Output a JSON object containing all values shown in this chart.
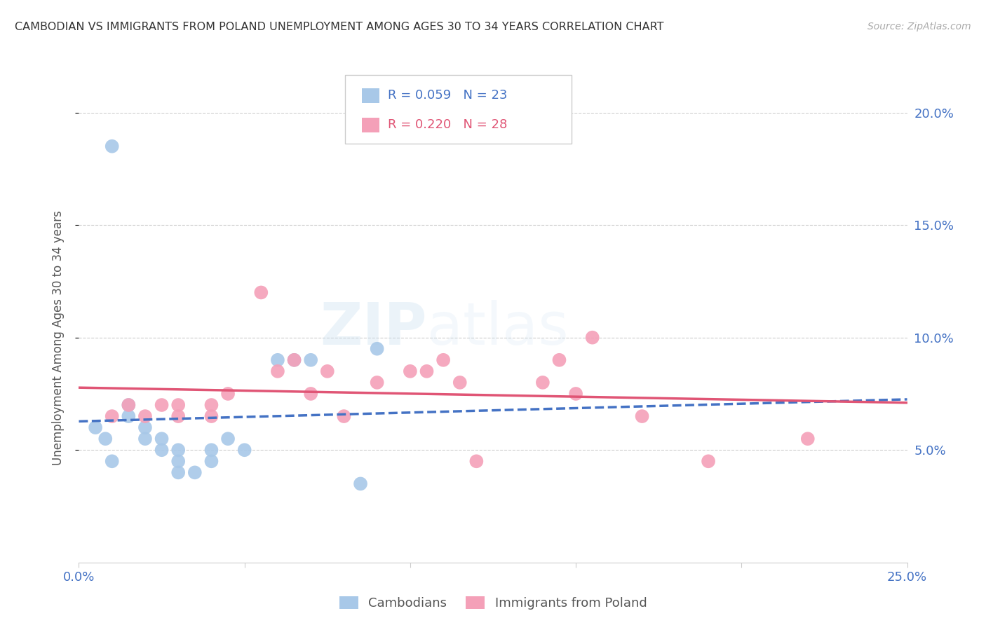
{
  "title": "CAMBODIAN VS IMMIGRANTS FROM POLAND UNEMPLOYMENT AMONG AGES 30 TO 34 YEARS CORRELATION CHART",
  "source": "Source: ZipAtlas.com",
  "ylabel": "Unemployment Among Ages 30 to 34 years",
  "xlabel": "",
  "xlim": [
    0.0,
    0.25
  ],
  "ylim": [
    0.0,
    0.2
  ],
  "xticks": [
    0.0,
    0.05,
    0.1,
    0.15,
    0.2,
    0.25
  ],
  "xtick_labels": [
    "0.0%",
    "",
    "",
    "",
    "",
    "25.0%"
  ],
  "yticks": [
    0.05,
    0.1,
    0.15,
    0.2
  ],
  "ytick_labels_right": [
    "5.0%",
    "10.0%",
    "15.0%",
    "20.0%"
  ],
  "cambodian_color": "#a8c8e8",
  "poland_color": "#f4a0b8",
  "cambodian_line_color": "#4472c4",
  "poland_line_color": "#e05575",
  "legend_R_cambodian": "R = 0.059",
  "legend_N_cambodian": "N = 23",
  "legend_R_poland": "R = 0.220",
  "legend_N_poland": "N = 28",
  "legend_label_cambodian": "Cambodians",
  "legend_label_poland": "Immigrants from Poland",
  "watermark_part1": "ZIP",
  "watermark_part2": "atlas",
  "cambodian_x": [
    0.005,
    0.008,
    0.01,
    0.015,
    0.015,
    0.02,
    0.02,
    0.025,
    0.025,
    0.03,
    0.03,
    0.03,
    0.035,
    0.04,
    0.04,
    0.045,
    0.05,
    0.06,
    0.065,
    0.07,
    0.085,
    0.09,
    0.01
  ],
  "cambodian_y": [
    0.06,
    0.055,
    0.045,
    0.07,
    0.065,
    0.055,
    0.06,
    0.05,
    0.055,
    0.04,
    0.045,
    0.05,
    0.04,
    0.045,
    0.05,
    0.055,
    0.05,
    0.09,
    0.09,
    0.09,
    0.035,
    0.095,
    0.185
  ],
  "poland_x": [
    0.01,
    0.015,
    0.02,
    0.025,
    0.03,
    0.03,
    0.04,
    0.04,
    0.045,
    0.055,
    0.06,
    0.065,
    0.07,
    0.075,
    0.08,
    0.09,
    0.1,
    0.105,
    0.11,
    0.115,
    0.12,
    0.14,
    0.145,
    0.15,
    0.155,
    0.17,
    0.19,
    0.22
  ],
  "poland_y": [
    0.065,
    0.07,
    0.065,
    0.07,
    0.065,
    0.07,
    0.065,
    0.07,
    0.075,
    0.12,
    0.085,
    0.09,
    0.075,
    0.085,
    0.065,
    0.08,
    0.085,
    0.085,
    0.09,
    0.08,
    0.045,
    0.08,
    0.09,
    0.075,
    0.1,
    0.065,
    0.045,
    0.055
  ],
  "background_color": "#ffffff",
  "grid_color": "#cccccc",
  "tick_color": "#4472c4",
  "label_color": "#555555"
}
